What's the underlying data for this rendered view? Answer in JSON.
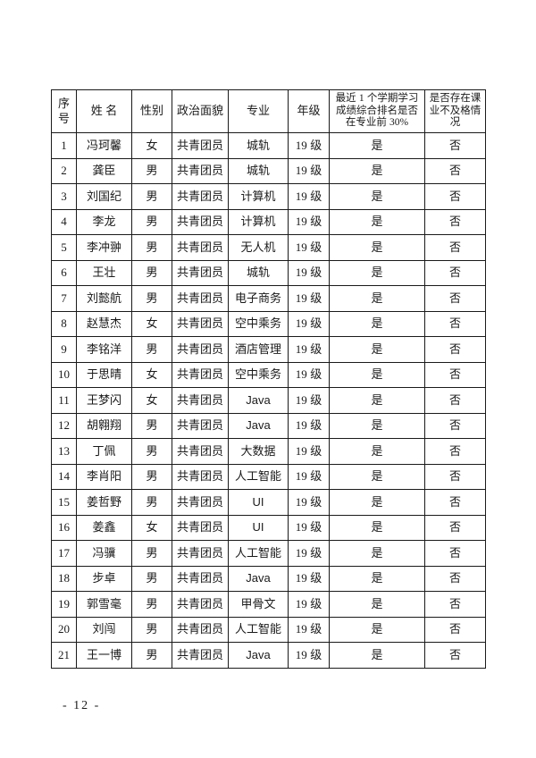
{
  "page": {
    "footer_page_number": "- 12 -"
  },
  "table": {
    "headers": [
      "序号",
      "姓 名",
      "性别",
      "政治面貌",
      "专业",
      "年级",
      "最近 1 个学期学习成绩综合排名是否在专业前 30%",
      "是否存在课业不及格情况"
    ],
    "rows": [
      [
        "1",
        "冯珂馨",
        "女",
        "共青团员",
        "城轨",
        "19 级",
        "是",
        "否"
      ],
      [
        "2",
        "龚臣",
        "男",
        "共青团员",
        "城轨",
        "19 级",
        "是",
        "否"
      ],
      [
        "3",
        "刘国纪",
        "男",
        "共青团员",
        "计算机",
        "19 级",
        "是",
        "否"
      ],
      [
        "4",
        "李龙",
        "男",
        "共青团员",
        "计算机",
        "19 级",
        "是",
        "否"
      ],
      [
        "5",
        "李冲翀",
        "男",
        "共青团员",
        "无人机",
        "19 级",
        "是",
        "否"
      ],
      [
        "6",
        "王壮",
        "男",
        "共青团员",
        "城轨",
        "19 级",
        "是",
        "否"
      ],
      [
        "7",
        "刘懿航",
        "男",
        "共青团员",
        "电子商务",
        "19 级",
        "是",
        "否"
      ],
      [
        "8",
        "赵慧杰",
        "女",
        "共青团员",
        "空中乘务",
        "19 级",
        "是",
        "否"
      ],
      [
        "9",
        "李铭洋",
        "男",
        "共青团员",
        "酒店管理",
        "19 级",
        "是",
        "否"
      ],
      [
        "10",
        "于思晴",
        "女",
        "共青团员",
        "空中乘务",
        "19 级",
        "是",
        "否"
      ],
      [
        "11",
        "王梦闪",
        "女",
        "共青团员",
        "Java",
        "19 级",
        "是",
        "否"
      ],
      [
        "12",
        "胡翱翔",
        "男",
        "共青团员",
        "Java",
        "19 级",
        "是",
        "否"
      ],
      [
        "13",
        "丁佩",
        "男",
        "共青团员",
        "大数据",
        "19 级",
        "是",
        "否"
      ],
      [
        "14",
        "李肖阳",
        "男",
        "共青团员",
        "人工智能",
        "19 级",
        "是",
        "否"
      ],
      [
        "15",
        "姜哲野",
        "男",
        "共青团员",
        "UI",
        "19 级",
        "是",
        "否"
      ],
      [
        "16",
        "姜鑫",
        "女",
        "共青团员",
        "UI",
        "19 级",
        "是",
        "否"
      ],
      [
        "17",
        "冯骥",
        "男",
        "共青团员",
        "人工智能",
        "19 级",
        "是",
        "否"
      ],
      [
        "18",
        "步卓",
        "男",
        "共青团员",
        "Java",
        "19 级",
        "是",
        "否"
      ],
      [
        "19",
        "郭雪毫",
        "男",
        "共青团员",
        "甲骨文",
        "19 级",
        "是",
        "否"
      ],
      [
        "20",
        "刘闯",
        "男",
        "共青团员",
        "人工智能",
        "19 级",
        "是",
        "否"
      ],
      [
        "21",
        "王一博",
        "男",
        "共青团员",
        "Java",
        "19 级",
        "是",
        "否"
      ]
    ]
  }
}
